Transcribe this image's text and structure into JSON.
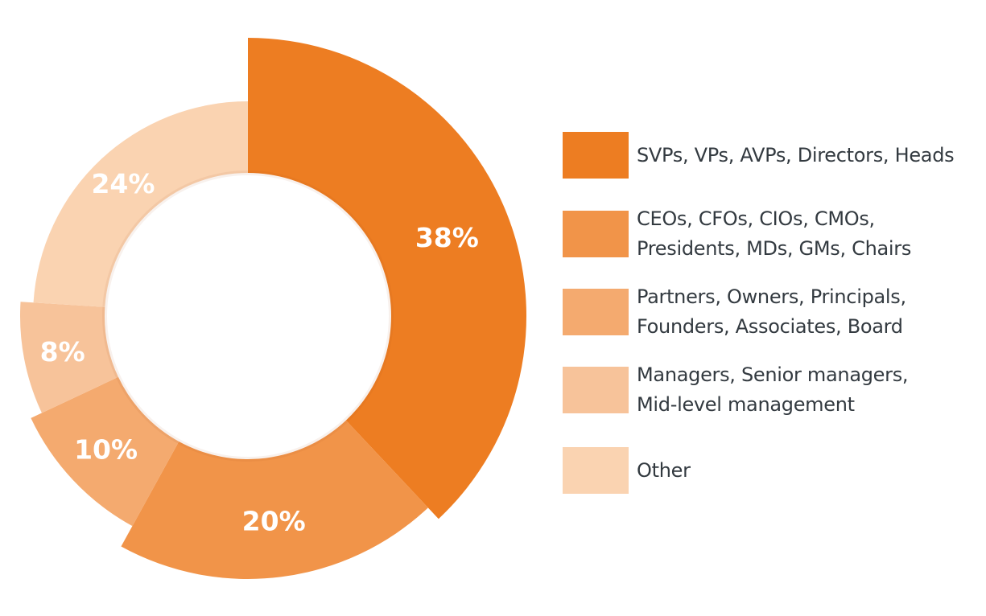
{
  "chart_data": {
    "type": "pie",
    "variant": "donut with varying outer radius",
    "title": "",
    "categories": [
      "SVPs, VPs, AVPs, Directors, Heads",
      "CEOs, CFOs, CIOs, CMOs, Presidents, MDs, GMs, Chairs",
      "Partners, Owners, Principals, Founders, Associates, Board",
      "Managers, Senior managers, Mid-level management",
      "Other"
    ],
    "values": [
      38,
      20,
      10,
      8,
      24
    ],
    "data_labels": [
      "38%",
      "20%",
      "10%",
      "8%",
      "24%"
    ],
    "colors": [
      "#ED7D22",
      "#F19449",
      "#F4AA6F",
      "#F7C39A",
      "#FAD3B1"
    ],
    "legend_placement": "right",
    "legend": [
      {
        "lines": [
          "SVPs, VPs, AVPs, Directors, Heads"
        ]
      },
      {
        "lines": [
          "CEOs, CFOs, CIOs, CMOs,",
          "Presidents, MDs, GMs, Chairs"
        ]
      },
      {
        "lines": [
          "Partners, Owners, Principals,",
          "Founders, Associates, Board"
        ]
      },
      {
        "lines": [
          "Managers, Senior managers,",
          "Mid-level management"
        ]
      },
      {
        "lines": [
          "Other"
        ]
      }
    ]
  }
}
